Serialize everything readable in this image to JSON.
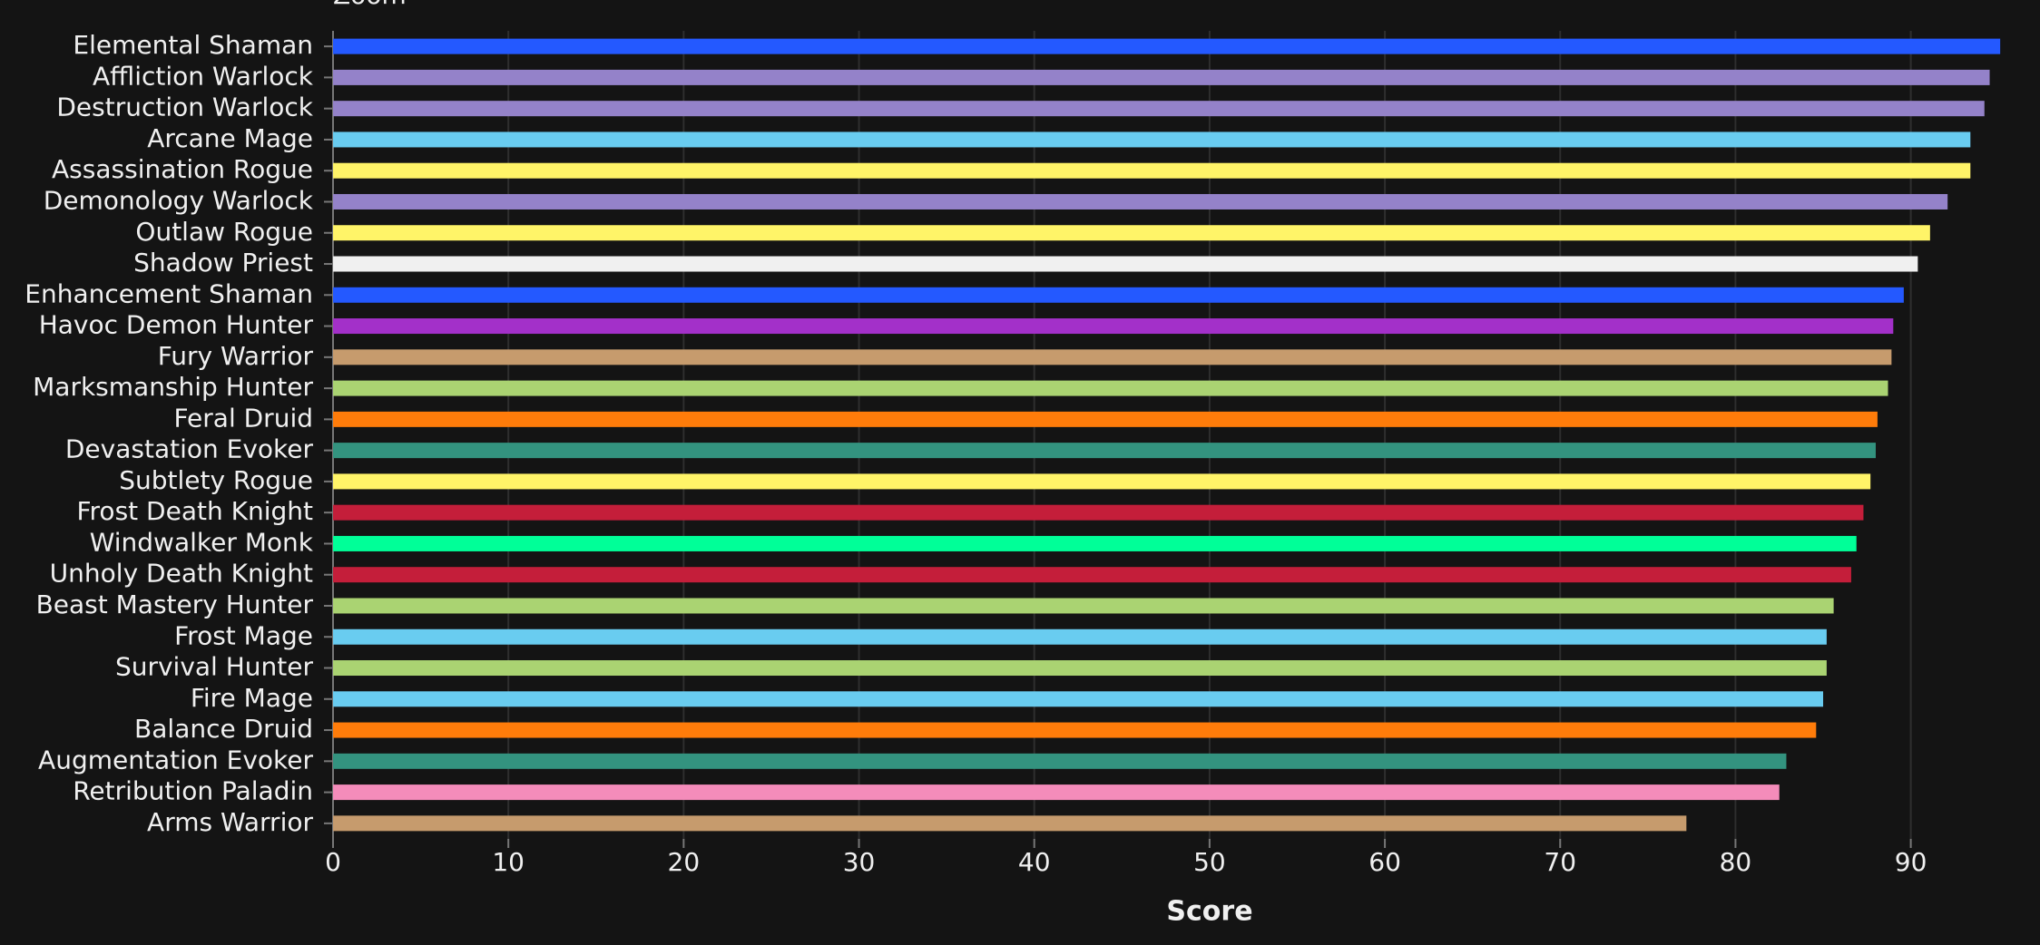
{
  "zoom_label": "Zoom",
  "chart_data": {
    "type": "bar",
    "orientation": "horizontal",
    "x_label": "Score",
    "categories": [
      "Elemental Shaman",
      "Affliction Warlock",
      "Destruction Warlock",
      "Arcane Mage",
      "Assassination Rogue",
      "Demonology Warlock",
      "Outlaw Rogue",
      "Shadow Priest",
      "Enhancement Shaman",
      "Havoc Demon Hunter",
      "Fury Warrior",
      "Marksmanship Hunter",
      "Feral Druid",
      "Devastation Evoker",
      "Subtlety Rogue",
      "Frost Death Knight",
      "Windwalker Monk",
      "Unholy Death Knight",
      "Beast Mastery Hunter",
      "Frost Mage",
      "Survival Hunter",
      "Fire Mage",
      "Balance Druid",
      "Augmentation Evoker",
      "Retribution Paladin",
      "Arms Warrior"
    ],
    "values": [
      95.1,
      94.5,
      94.2,
      93.4,
      93.4,
      92.1,
      91.1,
      90.4,
      89.6,
      89.0,
      88.9,
      88.7,
      88.1,
      88.0,
      87.7,
      87.3,
      86.9,
      86.6,
      85.6,
      85.2,
      85.2,
      85.0,
      84.6,
      82.9,
      82.5,
      77.2
    ],
    "colors": [
      "#2459ff",
      "#9482c9",
      "#9482c9",
      "#69ccf0",
      "#fff468",
      "#9482c9",
      "#fff468",
      "#f0f0f0",
      "#2459ff",
      "#a330c9",
      "#c69b6d",
      "#aad372",
      "#ff7c0a",
      "#33937f",
      "#fff468",
      "#c41e3a",
      "#00ff98",
      "#c41e3a",
      "#aad372",
      "#69ccf0",
      "#aad372",
      "#69ccf0",
      "#ff7c0a",
      "#33937f",
      "#f48cba",
      "#c69b6d"
    ],
    "xlim": [
      0,
      95.3
    ],
    "xticks": [
      0,
      10,
      20,
      30,
      40,
      50,
      60,
      70,
      80,
      90
    ],
    "grid": true
  }
}
